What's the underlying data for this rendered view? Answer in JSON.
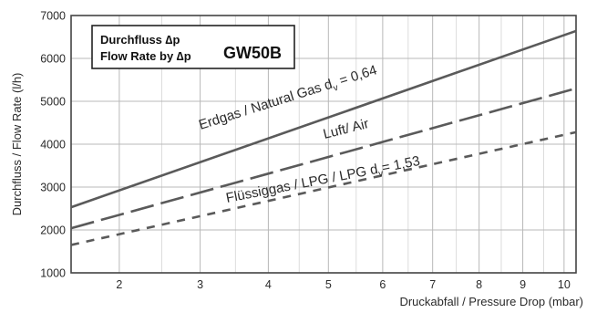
{
  "chart_data": {
    "type": "line",
    "title_lines": [
      "Durchfluss ∆p",
      "Flow Rate by ∆p"
    ],
    "model": "GW50B",
    "xlabel": "Druckabfall / Pressure Drop (mbar)",
    "ylabel": "Durchfluss / Flow Rate (l/h)",
    "xlim": [
      1.5,
      10.3
    ],
    "ylim": [
      1000,
      7000
    ],
    "x_scale": "sqrt",
    "y_scale": "linear",
    "xticks": [
      2,
      3,
      4,
      5,
      6,
      7,
      8,
      9,
      10
    ],
    "yticks": [
      1000,
      2000,
      3000,
      4000,
      5000,
      6000,
      7000
    ],
    "grid": true,
    "series": [
      {
        "name": "Erdgas / Natural Gas dv = 0,64",
        "label_main": "Erdgas / Natural Gas d",
        "label_sub": "v",
        "label_tail": " = 0,64",
        "style": "solid",
        "x": [
          1.5,
          10.3
        ],
        "y": [
          2530,
          6640
        ]
      },
      {
        "name": "Luft/ Air",
        "label_main": "Luft/ Air",
        "style": "dashed",
        "x": [
          1.5,
          10.3
        ],
        "y": [
          2040,
          5300
        ]
      },
      {
        "name": "Flüssiggas / LPG / LPG dv = 1,53",
        "label_main": "Flüssiggas / LPG / LPG d",
        "label_sub": "v",
        "label_tail": "= 1,53",
        "style": "dotted",
        "x": [
          1.5,
          10.3
        ],
        "y": [
          1650,
          4280
        ]
      }
    ]
  }
}
